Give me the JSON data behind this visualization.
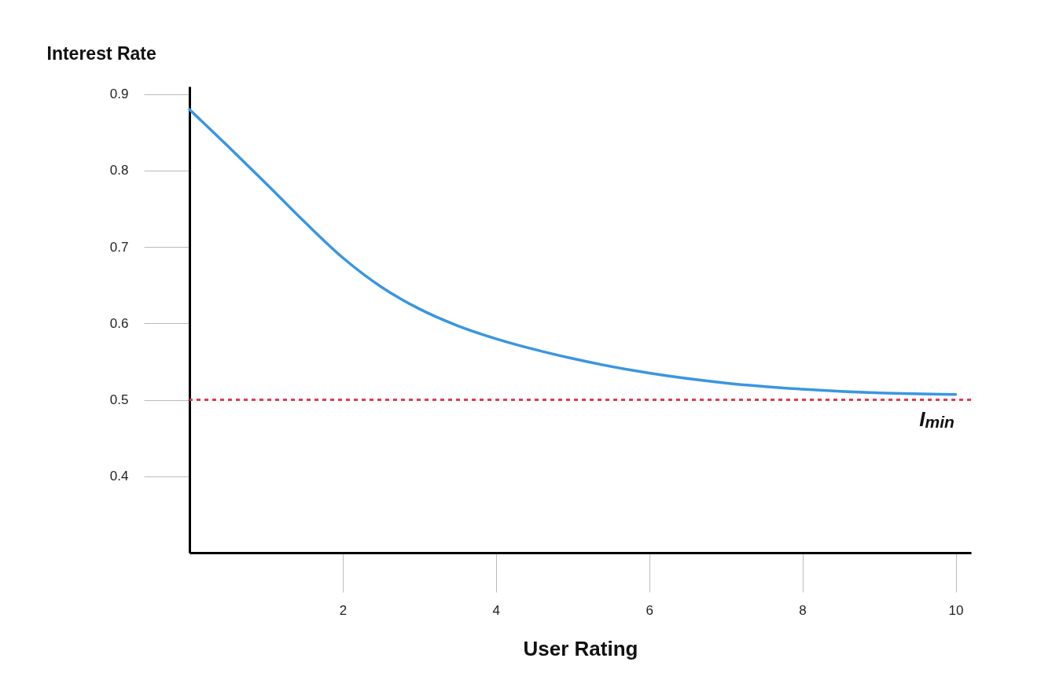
{
  "chart_data": {
    "type": "line",
    "xlabel": "User Rating",
    "ylabel": "Interest Rate",
    "x": [
      0,
      0.5,
      1,
      1.5,
      2,
      2.5,
      3,
      3.5,
      4,
      4.5,
      5,
      6,
      7,
      8,
      9,
      10
    ],
    "series": [
      {
        "color": "#3a96e0",
        "values": [
          0.88,
          0.832,
          0.783,
          0.733,
          0.686,
          0.648,
          0.619,
          0.597,
          0.58,
          0.566,
          0.554,
          0.535,
          0.522,
          0.514,
          0.509,
          0.507
        ]
      }
    ],
    "xlim": [
      0,
      10.2
    ],
    "xticks": [
      2,
      4,
      6,
      8,
      10
    ],
    "ylim": [
      0.3,
      0.91
    ],
    "yticks": [
      0.4,
      0.5,
      0.6,
      0.7,
      0.8,
      0.9
    ],
    "ref_lines": [
      {
        "axis": "y",
        "value": 0.5,
        "label": "I$_{min}$",
        "color": "#e8384f",
        "line_style": "dotted"
      }
    ]
  }
}
